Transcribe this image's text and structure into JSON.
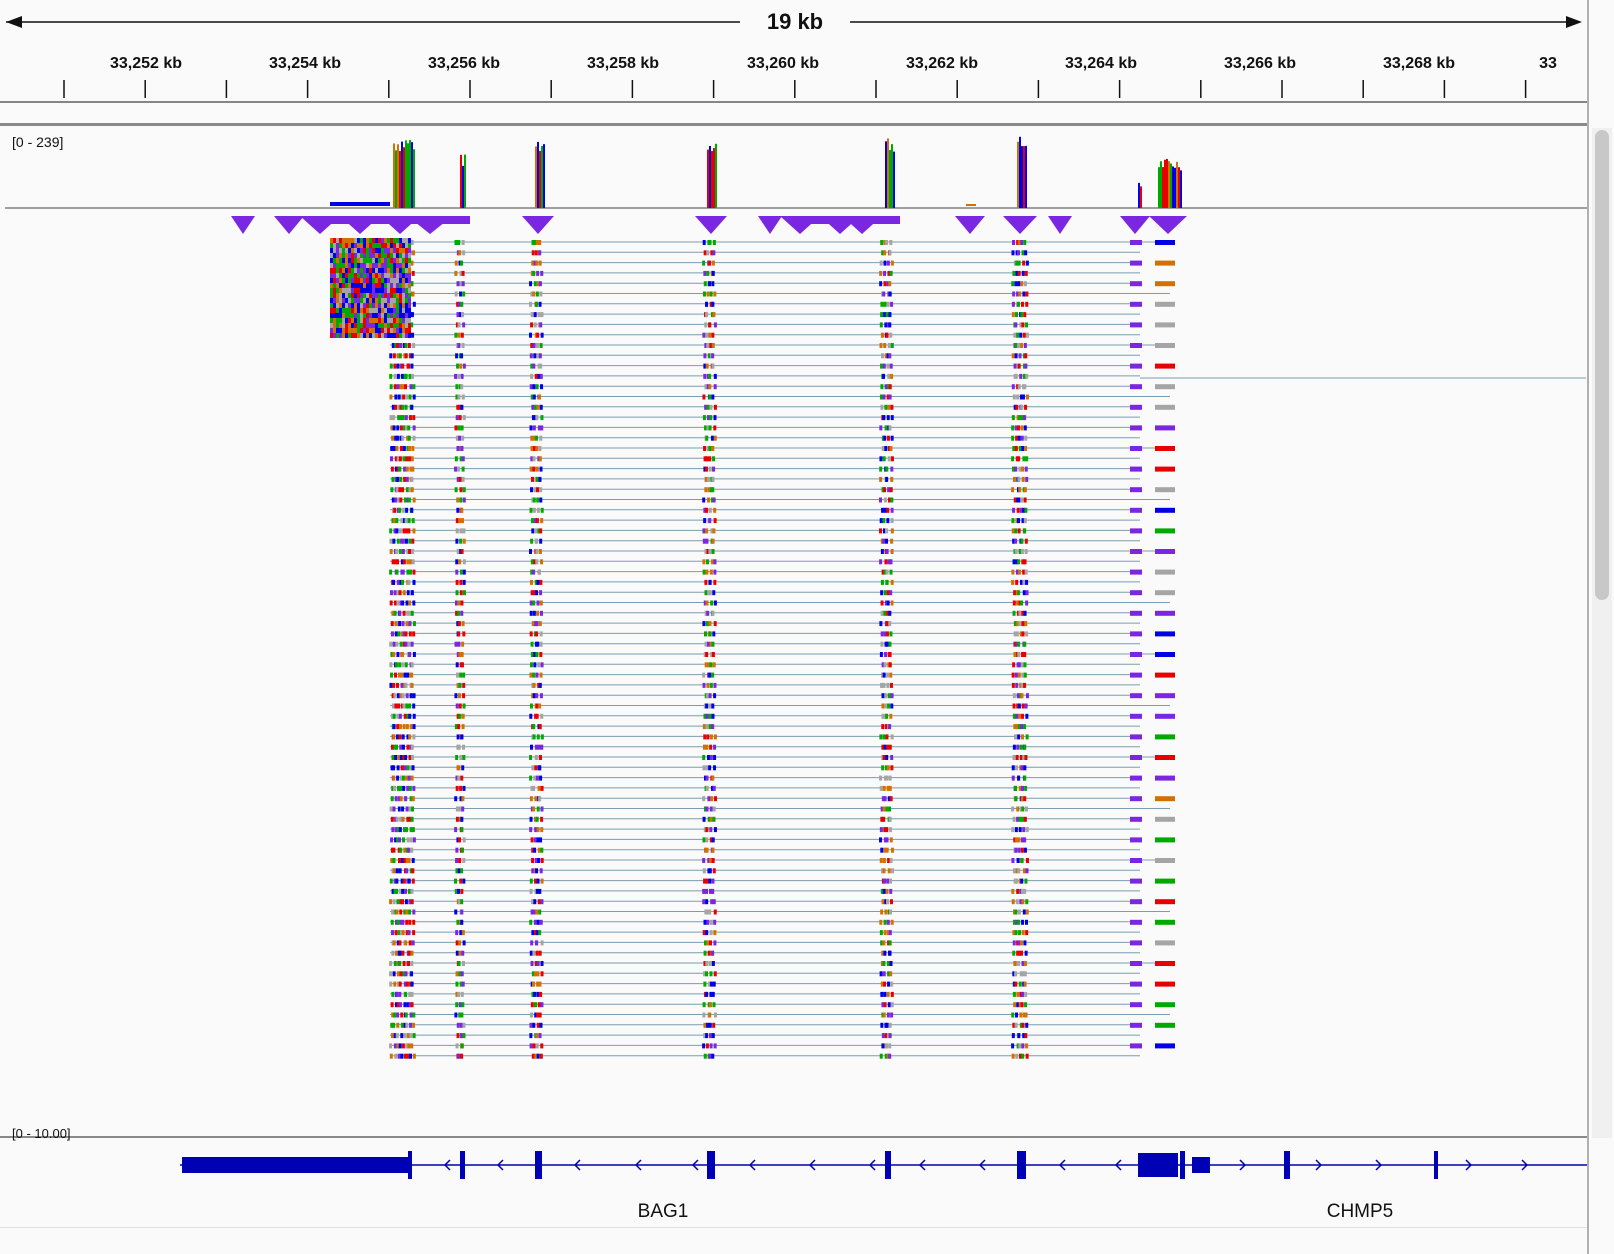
{
  "ruler": {
    "span_label": "19 kb",
    "tick_labels": [
      "33,252 kb",
      "33,254 kb",
      "33,256 kb",
      "33,258 kb",
      "33,260 kb",
      "33,262 kb",
      "33,264 kb",
      "33,266 kb",
      "33,268 kb",
      "33"
    ]
  },
  "tracks": {
    "coverage_range": "[0 - 239]",
    "lower_range": "[0 - 10.00]"
  },
  "genes": {
    "left_name": "BAG1",
    "right_name": "CHMP5"
  },
  "colors": {
    "read": "#7b26e0",
    "intron_line": "#7a9cb0",
    "gene": "#0000b4",
    "A": "#00a800",
    "C": "#0000e6",
    "G": "#d17105",
    "T": "#e60000",
    "mismatch_gray": "#a5a5a5"
  }
}
